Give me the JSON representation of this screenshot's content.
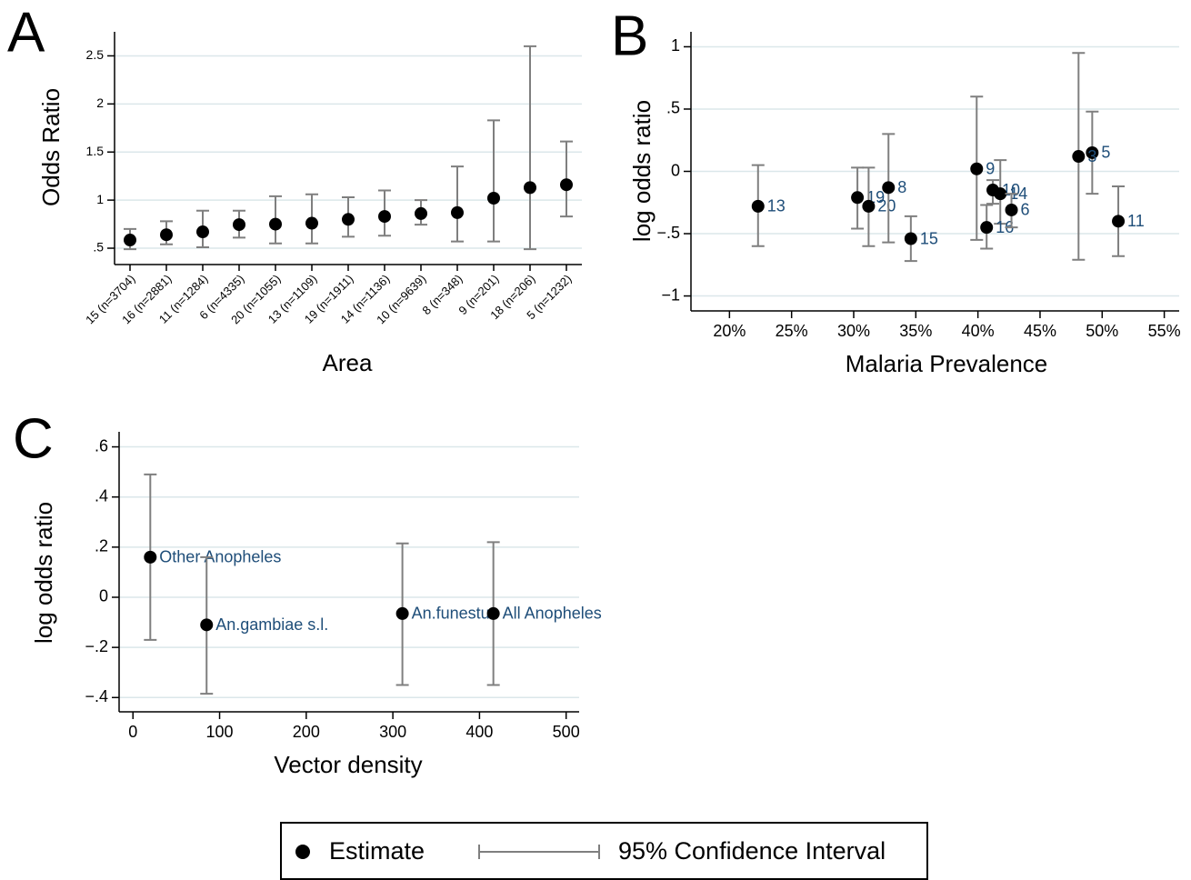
{
  "legend": [
    "Estimate",
    "95% Confidence Interval"
  ],
  "chart_data": [
    {
      "type": "errorbar",
      "panel": "A",
      "xlabel": "Area",
      "ylabel": "Odds Ratio",
      "categories": [
        "15 (n=3704)",
        "16 (n=2881)",
        "11 (n=1284)",
        "6 (n=4335)",
        "20 (n=1055)",
        "13 (n=1109)",
        "19 (n=1911)",
        "14 (n=1136)",
        "10 (n=9639)",
        "8 (n=348)",
        "9 (n=201)",
        "18 (n=206)",
        "5 (n=1232)"
      ],
      "values": [
        0.585,
        0.64,
        0.67,
        0.745,
        0.75,
        0.76,
        0.8,
        0.83,
        0.86,
        0.87,
        1.02,
        1.13,
        1.16
      ],
      "lower": [
        0.49,
        0.54,
        0.51,
        0.61,
        0.55,
        0.55,
        0.62,
        0.63,
        0.745,
        0.57,
        0.57,
        0.49,
        0.83
      ],
      "upper": [
        0.7,
        0.78,
        0.89,
        0.89,
        1.04,
        1.06,
        1.03,
        1.1,
        1.0,
        1.35,
        1.83,
        2.6,
        1.61
      ],
      "ylim": [
        0.33,
        2.75
      ],
      "yticks": [
        {
          "value": 0.5,
          "label": ".5"
        },
        1,
        1.5,
        2,
        2.5
      ],
      "grid": true,
      "color": "#000000",
      "ci_color": "#7f7f7f"
    },
    {
      "type": "scatter",
      "panel": "B",
      "xlabel": "Malaria Prevalence",
      "ylabel": "log odds ratio",
      "labels": [
        "13",
        "19",
        "20",
        "8",
        "15",
        "9",
        "10",
        "14",
        "16",
        "6",
        "5",
        "3",
        "11"
      ],
      "x": [
        22.3,
        30.3,
        31.2,
        32.8,
        34.6,
        39.9,
        41.2,
        41.8,
        40.7,
        42.7,
        49.2,
        48.1,
        51.3
      ],
      "values": [
        -0.28,
        -0.21,
        -0.28,
        -0.13,
        -0.54,
        0.02,
        -0.15,
        -0.18,
        -0.45,
        -0.31,
        0.15,
        0.12,
        -0.4
      ],
      "lower": [
        -0.6,
        -0.46,
        -0.6,
        -0.57,
        -0.72,
        -0.55,
        -0.26,
        -0.42,
        -0.62,
        -0.45,
        -0.18,
        -0.71,
        -0.68
      ],
      "upper": [
        0.05,
        0.03,
        0.03,
        0.3,
        -0.36,
        0.6,
        -0.07,
        0.09,
        -0.27,
        -0.18,
        0.48,
        0.95,
        -0.12
      ],
      "xlim": [
        16.9,
        56.2
      ],
      "xticks": [
        {
          "value": 20,
          "label": "20%"
        },
        {
          "value": 25,
          "label": "25%"
        },
        {
          "value": 30,
          "label": "30%"
        },
        {
          "value": 35,
          "label": "35%"
        },
        {
          "value": 40,
          "label": "40%"
        },
        {
          "value": 45,
          "label": "45%"
        },
        {
          "value": 50,
          "label": "50%"
        },
        {
          "value": 55,
          "label": "55%"
        }
      ],
      "ylim": [
        -1.12,
        1.12
      ],
      "yticks": [
        1,
        {
          "value": 0.5,
          "label": ".5"
        },
        0,
        {
          "value": -0.5,
          "label": "−.5"
        },
        {
          "value": -1,
          "label": "−1"
        }
      ],
      "grid": true,
      "color": "#000000",
      "ci_color": "#7f7f7f"
    },
    {
      "type": "scatter",
      "panel": "C",
      "xlabel": "Vector density",
      "ylabel": "log odds ratio",
      "labels": [
        "Other Anopheles",
        "An.gambiae s.l.",
        "An.funestus",
        "All Anopheles"
      ],
      "x": [
        20,
        85,
        311,
        416
      ],
      "values": [
        0.16,
        -0.11,
        -0.065,
        -0.065
      ],
      "lower": [
        -0.17,
        -0.385,
        -0.35,
        -0.35
      ],
      "upper": [
        0.49,
        0.16,
        0.215,
        0.22
      ],
      "xlim": [
        -16,
        515
      ],
      "xticks": [
        0,
        100,
        200,
        300,
        400,
        500
      ],
      "ylim": [
        -0.457,
        0.66
      ],
      "yticks": [
        {
          "value": 0.6,
          "label": ".6"
        },
        {
          "value": 0.4,
          "label": ".4"
        },
        {
          "value": 0.2,
          "label": ".2"
        },
        0,
        {
          "value": -0.2,
          "label": "−.2"
        },
        {
          "value": -0.4,
          "label": "−.4"
        }
      ],
      "grid": true,
      "color": "#000000",
      "ci_color": "#7f7f7f"
    }
  ]
}
